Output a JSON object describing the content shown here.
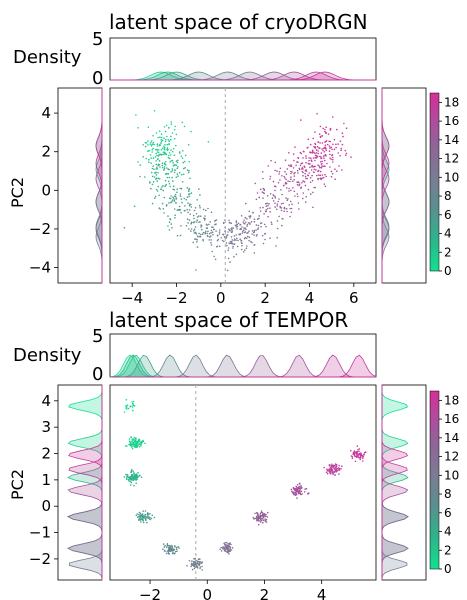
{
  "figure": {
    "panels": [
      {
        "title": "latent space of cryoDRGN",
        "xlabel": "",
        "ylabel": "PC2",
        "density_label": "Density",
        "density_ticks": [
          "5",
          "0"
        ],
        "xticks": [
          "−4",
          "−2",
          "0",
          "2",
          "4",
          "6"
        ],
        "yticks": [
          "4",
          "2",
          "0",
          "−2",
          "−4"
        ],
        "colorbar_ticks": [
          "18",
          "16",
          "14",
          "12",
          "10",
          "8",
          "6",
          "4",
          "2",
          "0"
        ]
      },
      {
        "title": "latent space of TEMPOR",
        "xlabel": "",
        "ylabel": "PC2",
        "density_label": "Density",
        "density_ticks": [
          "5",
          "0"
        ],
        "xticks": [
          "−2",
          "0",
          "2",
          "4"
        ],
        "yticks": [
          "4",
          "3",
          "2",
          "1",
          "0",
          "−1",
          "−2"
        ],
        "colorbar_ticks": [
          "18",
          "16",
          "14",
          "12",
          "10",
          "8",
          "6",
          "4",
          "2",
          "0"
        ]
      }
    ]
  },
  "colors": {
    "colormap": [
      "#13e08e",
      "#2fb38c",
      "#5b8e8e",
      "#7a7d93",
      "#8f6597",
      "#b04b9e",
      "#d42f98"
    ],
    "dashed_line": "#aaaaaa",
    "extra_density": [
      "#2ab7e6",
      "#8fa0ff"
    ]
  },
  "chart_data": [
    {
      "type": "scatter",
      "title": "latent space of cryoDRGN",
      "ylabel": "PC2",
      "xlim": [
        -5,
        7
      ],
      "ylim": [
        -4.8,
        5.3
      ],
      "colorbar_range": [
        0,
        19
      ],
      "dashed_vline_x": 0.2,
      "density_ylim": [
        0,
        5
      ],
      "grid": false,
      "clusters": [
        {
          "color_value": 1,
          "x": -2.7,
          "y": 2.3,
          "n": 120
        },
        {
          "color_value": 3,
          "x": -2.4,
          "y": 1.1,
          "n": 120
        },
        {
          "color_value": 5,
          "x": -2.0,
          "y": -0.6,
          "n": 80
        },
        {
          "color_value": 7,
          "x": -1.0,
          "y": -1.9,
          "n": 90
        },
        {
          "color_value": 9,
          "x": 0.3,
          "y": -2.4,
          "n": 110
        },
        {
          "color_value": 11,
          "x": 1.3,
          "y": -2.0,
          "n": 90
        },
        {
          "color_value": 13,
          "x": 2.4,
          "y": -0.6,
          "n": 80
        },
        {
          "color_value": 15,
          "x": 3.3,
          "y": 0.6,
          "n": 110
        },
        {
          "color_value": 17,
          "x": 4.3,
          "y": 1.4,
          "n": 110
        },
        {
          "color_value": 18,
          "x": 4.7,
          "y": 2.3,
          "n": 90
        }
      ]
    },
    {
      "type": "scatter",
      "title": "latent space of TEMPOR",
      "ylabel": "PC2",
      "xlim": [
        -3.4,
        5.9
      ],
      "ylim": [
        -2.8,
        4.6
      ],
      "colorbar_range": [
        0,
        19
      ],
      "dashed_vline_x": -0.4,
      "density_ylim": [
        0,
        5
      ],
      "grid": false,
      "clusters": [
        {
          "color_value": 0,
          "x": -2.7,
          "y": 3.8,
          "n": 20
        },
        {
          "color_value": 1,
          "x": -2.5,
          "y": 2.4,
          "n": 90
        },
        {
          "color_value": 3,
          "x": -2.6,
          "y": 1.1,
          "n": 90
        },
        {
          "color_value": 5,
          "x": -2.2,
          "y": -0.4,
          "n": 70
        },
        {
          "color_value": 7,
          "x": -1.3,
          "y": -1.6,
          "n": 70
        },
        {
          "color_value": 9,
          "x": -0.4,
          "y": -2.2,
          "n": 70
        },
        {
          "color_value": 11,
          "x": 0.7,
          "y": -1.6,
          "n": 70
        },
        {
          "color_value": 13,
          "x": 1.9,
          "y": -0.4,
          "n": 80
        },
        {
          "color_value": 15,
          "x": 3.2,
          "y": 0.6,
          "n": 80
        },
        {
          "color_value": 17,
          "x": 4.4,
          "y": 1.4,
          "n": 80
        },
        {
          "color_value": 18,
          "x": 5.3,
          "y": 1.95,
          "n": 60
        }
      ]
    }
  ]
}
